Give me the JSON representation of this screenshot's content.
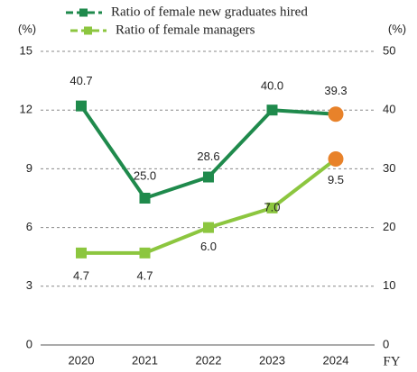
{
  "chart_data": {
    "type": "line",
    "y_label": "(%)",
    "y2_label": "(%)",
    "x_label": "FY",
    "categories": [
      "2020",
      "2021",
      "2022",
      "2023",
      "2024"
    ],
    "series": [
      {
        "name": "Ratio of female new graduates hired",
        "color": "#1f8a4c",
        "axis": "y2",
        "values": [
          40.7,
          25.0,
          28.6,
          40.0,
          39.3
        ],
        "value_labels": [
          "40.7",
          "25.0",
          "28.6",
          "40.0",
          "39.3"
        ],
        "marker_colors": [
          "#1f8a4c",
          "#1f8a4c",
          "#1f8a4c",
          "#1f8a4c",
          "#e8822a"
        ]
      },
      {
        "name": "Ratio of female managers",
        "color": "#8cc63f",
        "axis": "y",
        "values": [
          4.7,
          4.7,
          6.0,
          7.0,
          9.5
        ],
        "value_labels": [
          "4.7",
          "4.7",
          "6.0",
          "7.0",
          "9.5"
        ],
        "marker_colors": [
          "#8cc63f",
          "#8cc63f",
          "#8cc63f",
          "#8cc63f",
          "#e8822a"
        ]
      }
    ],
    "ylim": [
      0,
      15
    ],
    "yticks": [
      0,
      3,
      6,
      9,
      12,
      15
    ],
    "y2lim": [
      0,
      50
    ],
    "y2ticks": [
      0,
      10,
      20,
      30,
      40,
      50
    ],
    "grid": true,
    "legend": "top"
  }
}
